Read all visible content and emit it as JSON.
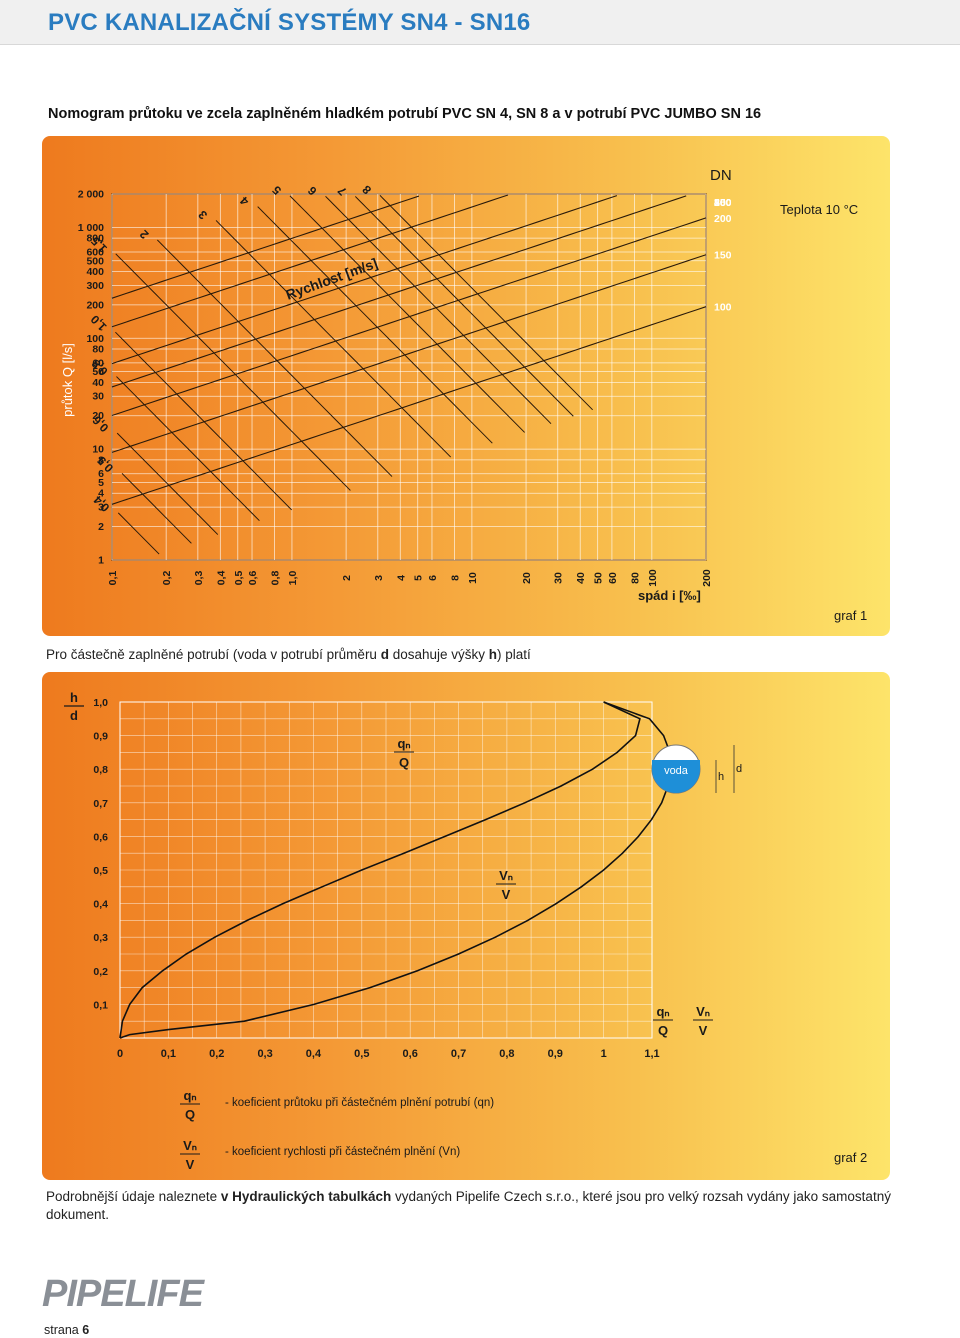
{
  "header": {
    "title": "PVC KANALIZAČNÍ SYSTÉMY SN4 - SN16"
  },
  "section_title": "Nomogram průtoku ve zcela zaplněném hladkém potrubí PVC SN 4, SN 8 a v potrubí PVC JUMBO SN 16",
  "colors": {
    "title_blue": "#2a7cc0",
    "panel_orange": "#ee7a1e",
    "panel_yellow": "#fde46a",
    "water_blue": "#1e8fd8"
  },
  "graph1": {
    "label": "graf 1",
    "temperature": "Teplota 10 °C",
    "dn_title": "DN",
    "velocity_title": "Rychlost [m/s]"
  },
  "graph2": {
    "label": "graf 2",
    "legend_qn_desc": "- koeficient průtoku při částečném plnění potrubí (qn)",
    "legend_vn_desc": "- koeficient rychlosti při částečném plnění (Vn)",
    "inset_water": "voda",
    "inset_h": "h",
    "inset_d": "d"
  },
  "mid_text": {
    "before_d": "Pro částečně zaplněné potrubí (voda v potrubí průměru ",
    "d": "d",
    "between": " dosahuje výšky ",
    "h": "h",
    "after_h": ") platí"
  },
  "footer": {
    "before_bold": "Podrobnější údaje naleznete ",
    "bold": "v Hydraulických tabulkách",
    "after_bold": " vydaných Pipelife Czech s.r.o., které jsou pro velký rozsah vydány jako samostatný dokument."
  },
  "brand": {
    "logo_text": "PIPELIFE"
  },
  "page": {
    "label": "strana",
    "number": "6"
  },
  "chart_data": [
    {
      "type": "nomogram",
      "xlabel": "spád i [‰]",
      "ylabel": "průtok Q [l/s]",
      "x_scale": "log",
      "y_scale": "log",
      "xlim": [
        0.1,
        200
      ],
      "ylim": [
        1,
        2000
      ],
      "x_ticks": [
        "0,1",
        "0,2",
        "0,3",
        "0,4",
        "0,5",
        "0,6",
        "0,8",
        "1,0",
        "2",
        "3",
        "4",
        "5",
        "6",
        "8",
        "10",
        "20",
        "30",
        "40",
        "50",
        "60",
        "80",
        "100",
        "200"
      ],
      "x_tick_values": [
        0.1,
        0.2,
        0.3,
        0.4,
        0.5,
        0.6,
        0.8,
        1.0,
        2,
        3,
        4,
        5,
        6,
        8,
        10,
        20,
        30,
        40,
        50,
        60,
        80,
        100,
        200
      ],
      "y_ticks": [
        "2 000",
        "1 000",
        "800",
        "600",
        "500",
        "400",
        "300",
        "200",
        "100",
        "80",
        "60",
        "50",
        "40",
        "30",
        "20",
        "10",
        "8",
        "6",
        "5",
        "4",
        "3",
        "2",
        "1"
      ],
      "y_tick_values": [
        2000,
        1000,
        800,
        600,
        500,
        400,
        300,
        200,
        100,
        80,
        60,
        50,
        40,
        30,
        20,
        10,
        8,
        6,
        5,
        4,
        3,
        2,
        1
      ],
      "dn_labels": [
        "500",
        "400",
        "300",
        "250",
        "200",
        "150",
        "100"
      ],
      "dn_values": [
        500,
        400,
        300,
        250,
        200,
        150,
        100
      ],
      "velocity_labels": [
        "0,1",
        "0,2",
        "0,3",
        "0,4",
        "0,5",
        "0,6",
        "0,8",
        "1,0",
        "1,5",
        "2",
        "3",
        "4",
        "5",
        "6",
        "7",
        "8"
      ],
      "velocity_values": [
        0.1,
        0.2,
        0.3,
        0.4,
        0.5,
        0.6,
        0.8,
        1.0,
        1.5,
        2,
        3,
        4,
        5,
        6,
        7,
        8
      ],
      "grid": true
    },
    {
      "type": "line",
      "xlabel": "",
      "ylabel": "",
      "ylabel_top": "h",
      "ylabel_bottom": "d",
      "xlim": [
        0,
        1.1
      ],
      "ylim": [
        0,
        1.0
      ],
      "x_ticks": [
        "0",
        "0,1",
        "0,2",
        "0,3",
        "0,4",
        "0,5",
        "0,6",
        "0,7",
        "0,8",
        "0,9",
        "1",
        "1,1"
      ],
      "x_tick_values": [
        0,
        0.1,
        0.2,
        0.3,
        0.4,
        0.5,
        0.6,
        0.7,
        0.8,
        0.9,
        1.0,
        1.1
      ],
      "y_ticks": [
        "1,0",
        "0,9",
        "0,8",
        "0,7",
        "0,6",
        "0,5",
        "0,4",
        "0,3",
        "0,2",
        "0,1"
      ],
      "y_tick_values": [
        1.0,
        0.9,
        0.8,
        0.7,
        0.6,
        0.5,
        0.4,
        0.3,
        0.2,
        0.1
      ],
      "series": [
        {
          "name": "qn/Q",
          "label_top": "qₙ",
          "label_bottom": "Q",
          "points": [
            [
              0,
              0
            ],
            [
              0.005,
              0.05
            ],
            [
              0.02,
              0.1
            ],
            [
              0.046,
              0.15
            ],
            [
              0.088,
              0.2
            ],
            [
              0.137,
              0.25
            ],
            [
              0.196,
              0.3
            ],
            [
              0.263,
              0.35
            ],
            [
              0.337,
              0.4
            ],
            [
              0.418,
              0.45
            ],
            [
              0.5,
              0.5
            ],
            [
              0.587,
              0.55
            ],
            [
              0.672,
              0.6
            ],
            [
              0.756,
              0.65
            ],
            [
              0.837,
              0.7
            ],
            [
              0.912,
              0.75
            ],
            [
              0.977,
              0.8
            ],
            [
              1.028,
              0.85
            ],
            [
              1.066,
              0.9
            ],
            [
              1.075,
              0.95
            ],
            [
              1.0,
              1.0
            ]
          ]
        },
        {
          "name": "Vn/V",
          "label_top": "Vₙ",
          "label_bottom": "V",
          "points": [
            [
              0,
              0
            ],
            [
              0.02,
              0.01
            ],
            [
              0.1,
              0.025
            ],
            [
              0.257,
              0.05
            ],
            [
              0.401,
              0.1
            ],
            [
              0.517,
              0.15
            ],
            [
              0.615,
              0.2
            ],
            [
              0.7,
              0.25
            ],
            [
              0.776,
              0.3
            ],
            [
              0.843,
              0.35
            ],
            [
              0.902,
              0.4
            ],
            [
              0.954,
              0.45
            ],
            [
              1.0,
              0.5
            ],
            [
              1.039,
              0.55
            ],
            [
              1.072,
              0.6
            ],
            [
              1.099,
              0.65
            ],
            [
              1.12,
              0.7
            ],
            [
              1.133,
              0.75
            ],
            [
              1.14,
              0.8
            ],
            [
              1.137,
              0.85
            ],
            [
              1.124,
              0.9
            ],
            [
              1.095,
              0.95
            ],
            [
              1.0,
              1.0
            ]
          ]
        }
      ],
      "grid": true
    }
  ]
}
